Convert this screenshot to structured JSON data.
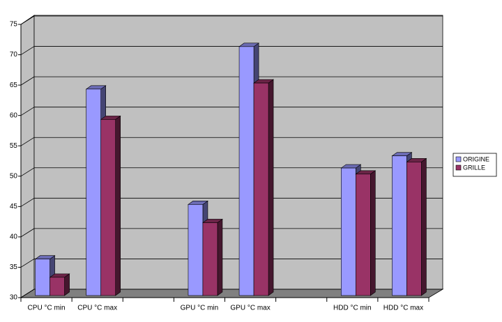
{
  "chart_data": {
    "type": "bar3d",
    "categories": [
      "CPU °C min",
      "CPU °C max",
      null,
      "GPU °C min",
      "GPU  °C max",
      null,
      "HDD °C min",
      "HDD °C max"
    ],
    "series": [
      {
        "name": "ORIGINE",
        "color": "#9999ff",
        "values": [
          36,
          64,
          null,
          45,
          71,
          null,
          51,
          53
        ]
      },
      {
        "name": "GRILLE",
        "color": "#993366",
        "values": [
          33,
          59,
          null,
          42,
          65,
          null,
          50,
          52
        ]
      }
    ],
    "ylim": [
      30,
      75
    ],
    "yticks": [
      30,
      35,
      40,
      45,
      50,
      55,
      60,
      65,
      70,
      75
    ],
    "grid": true,
    "legend": "right"
  }
}
